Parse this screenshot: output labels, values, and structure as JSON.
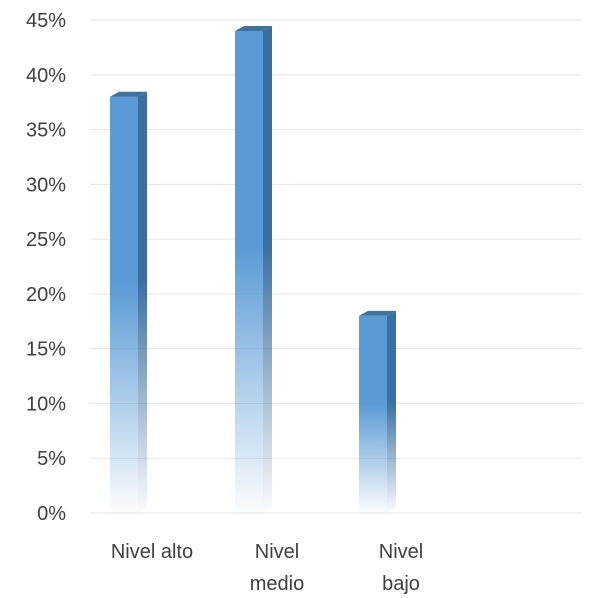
{
  "chart_data": {
    "type": "bar",
    "categories": [
      "Nivel alto",
      "Nivel medio",
      "Nivel bajo"
    ],
    "category_label_lines": [
      [
        "Nivel alto"
      ],
      [
        "Nivel",
        "medio"
      ],
      [
        "Nivel",
        "bajo"
      ]
    ],
    "values": [
      0.38,
      0.44,
      0.18
    ],
    "ylim": [
      0,
      0.45
    ],
    "yticks": [
      0,
      0.05,
      0.1,
      0.15,
      0.2,
      0.25,
      0.3,
      0.35,
      0.4,
      0.45
    ],
    "ytick_labels": [
      "0%",
      "5%",
      "10%",
      "15%",
      "20%",
      "25%",
      "30%",
      "35%",
      "40%",
      "45%"
    ],
    "title": "",
    "xlabel": "",
    "ylabel": "",
    "grid": true,
    "legend": "none",
    "colors": {
      "bar_front": "#5b9bd5",
      "bar_side": "#3a6fa3",
      "bar_top": "#41719c",
      "grid": "#e6e6e6",
      "text": "#404040"
    }
  }
}
